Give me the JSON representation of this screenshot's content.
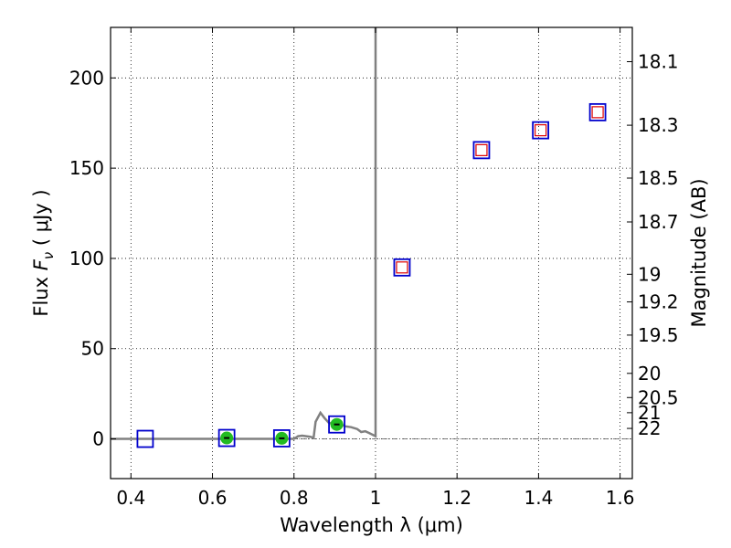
{
  "chart_data": {
    "type": "scatter",
    "xlabel": "Wavelength  λ (μm)",
    "ylabel_prefix": "Flux  ",
    "ylabel_var": "F",
    "ylabel_sub": "ν",
    "ylabel_suffix": "  ( μJy )",
    "y2label": "Magnitude (AB)",
    "xlim": [
      0.35,
      1.63
    ],
    "ylim": [
      -22,
      228
    ],
    "x_ticks": [
      0.4,
      0.6,
      0.8,
      1.0,
      1.2,
      1.4,
      1.6
    ],
    "x_tick_labels": [
      "0.4",
      "0.6",
      "0.8",
      "1",
      "1.2",
      "1.4",
      "1.6"
    ],
    "y_ticks": [
      0,
      50,
      100,
      150,
      200
    ],
    "y_tick_labels": [
      "0",
      "50",
      "100",
      "150",
      "200"
    ],
    "y2_ticks": [
      {
        "label": "18.1",
        "flux": 209.0
      },
      {
        "label": "18.3",
        "flux": 173.8
      },
      {
        "label": "18.5",
        "flux": 144.5
      },
      {
        "label": "18.7",
        "flux": 120.2
      },
      {
        "label": "19",
        "flux": 91.2
      },
      {
        "label": "19.2",
        "flux": 75.9
      },
      {
        "label": "19.5",
        "flux": 57.5
      },
      {
        "label": "20",
        "flux": 36.3
      },
      {
        "label": "20.5",
        "flux": 22.9
      },
      {
        "label": "21",
        "flux": 14.5
      },
      {
        "label": "22",
        "flux": 5.8
      }
    ],
    "grid": true,
    "model_series": [
      [
        0.35,
        0.0
      ],
      [
        0.4,
        0.0
      ],
      [
        0.5,
        0.0
      ],
      [
        0.6,
        0.0
      ],
      [
        0.7,
        0.0
      ],
      [
        0.8,
        0.0
      ],
      [
        0.81,
        1.5
      ],
      [
        0.82,
        1.8
      ],
      [
        0.84,
        1.2
      ],
      [
        0.848,
        0.6
      ],
      [
        0.853,
        9.5
      ],
      [
        0.865,
        14.5
      ],
      [
        0.875,
        11.5
      ],
      [
        0.885,
        9.0
      ],
      [
        0.895,
        8.2
      ],
      [
        0.91,
        8.8
      ],
      [
        0.925,
        7.0
      ],
      [
        0.94,
        6.5
      ],
      [
        0.955,
        5.5
      ],
      [
        0.965,
        3.8
      ],
      [
        0.975,
        4.2
      ],
      [
        0.985,
        3.2
      ],
      [
        1.0,
        1.5
      ],
      [
        1.0,
        228
      ]
    ],
    "model_color": "#808080",
    "observed_boxes": [
      {
        "x": 0.435,
        "flux": 0.0
      },
      {
        "x": 0.635,
        "flux": 0.5
      },
      {
        "x": 0.77,
        "flux": 0.3
      },
      {
        "x": 0.905,
        "flux": 8.0
      },
      {
        "x": 1.065,
        "flux": 95.0
      },
      {
        "x": 1.26,
        "flux": 160.0
      },
      {
        "x": 1.405,
        "flux": 171.0
      },
      {
        "x": 1.545,
        "flux": 181.0
      }
    ],
    "model_points_green": [
      {
        "x": 0.635,
        "flux": 0.5
      },
      {
        "x": 0.77,
        "flux": 0.3
      },
      {
        "x": 0.905,
        "flux": 8.0
      }
    ],
    "model_points_red": [
      {
        "x": 1.065,
        "flux": 95.0
      },
      {
        "x": 1.26,
        "flux": 160.0
      },
      {
        "x": 1.405,
        "flux": 171.0
      },
      {
        "x": 1.545,
        "flux": 181.0
      }
    ],
    "box_color": "#0000cc",
    "green_color": "#22bb22",
    "red_color": "#dd0000"
  }
}
